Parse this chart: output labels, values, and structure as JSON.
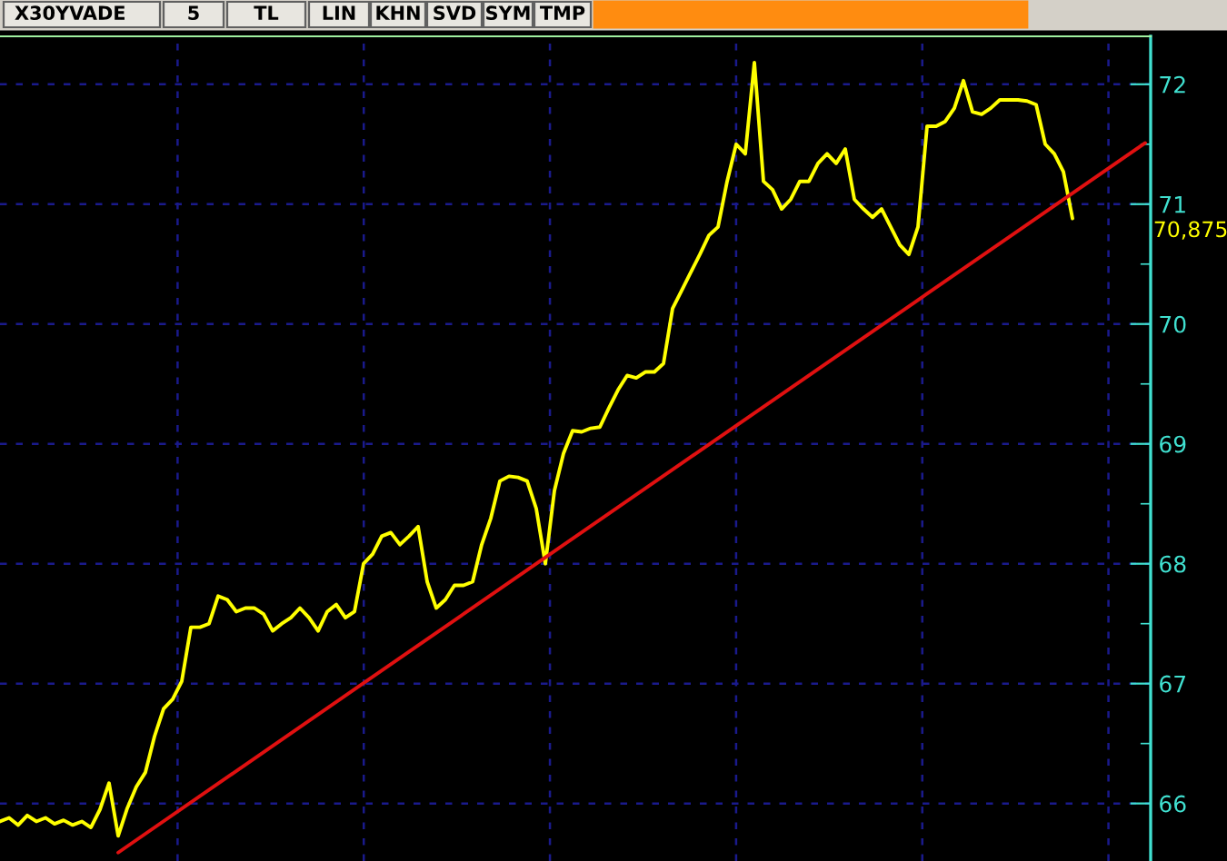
{
  "chart_data": {
    "type": "line",
    "title": "X30YVADE",
    "annotations": [
      "5",
      "TL",
      "LIN",
      "KHN",
      "SVD",
      "SYM",
      "TMP",
      "70,875"
    ],
    "categories": [
      null,
      null,
      null,
      null,
      null,
      null,
      null,
      null,
      null,
      null,
      null,
      null,
      null,
      null,
      null,
      null,
      null,
      null,
      null,
      null,
      null,
      null,
      null,
      null,
      null,
      null,
      null,
      null,
      null,
      null,
      null,
      null,
      null,
      null,
      null,
      null,
      null,
      null,
      null,
      null,
      null,
      null,
      null,
      null,
      null,
      null,
      null,
      null,
      null,
      null,
      null,
      null,
      null,
      null,
      null,
      null,
      null,
      null,
      null,
      null,
      null,
      null,
      null,
      null,
      null,
      null,
      null,
      null,
      null,
      null,
      null,
      null,
      null,
      null,
      null,
      null,
      null,
      null,
      null,
      null,
      null,
      null,
      null,
      null,
      null,
      null,
      null,
      null,
      null,
      null,
      null,
      null,
      null,
      null,
      null,
      null,
      null,
      null,
      null,
      null,
      null,
      null,
      null,
      null,
      null,
      null,
      null,
      null,
      null,
      null,
      null,
      null,
      null,
      null,
      null,
      null,
      null,
      null,
      null,
      null,
      null,
      null,
      null,
      null,
      null,
      null,
      null
    ],
    "series": [
      {
        "color": "#ffff00",
        "values": [
          65.85,
          65.88,
          65.82,
          65.9,
          65.85,
          65.88,
          65.83,
          65.86,
          65.82,
          65.85,
          65.8,
          65.95,
          66.17,
          65.73,
          65.96,
          66.14,
          66.26,
          66.56,
          66.79,
          66.87,
          67.02,
          67.47,
          67.47,
          67.5,
          67.73,
          67.7,
          67.6,
          67.63,
          67.63,
          67.58,
          67.44,
          67.5,
          67.55,
          67.63,
          67.55,
          67.44,
          67.6,
          67.66,
          67.55,
          67.6,
          68.0,
          68.08,
          68.23,
          68.26,
          68.16,
          68.23,
          68.31,
          67.85,
          67.63,
          67.7,
          67.82,
          67.82,
          67.85,
          68.16,
          68.38,
          68.69,
          68.73,
          68.72,
          68.69,
          68.46,
          68.0,
          68.61,
          68.92,
          69.11,
          69.1,
          69.13,
          69.14,
          69.3,
          69.45,
          69.57,
          69.55,
          69.6,
          69.6,
          69.67,
          70.13,
          70.28,
          70.43,
          70.58,
          70.74,
          70.81,
          71.19,
          71.5,
          71.42,
          72.18,
          71.19,
          71.12,
          70.96,
          71.04,
          71.19,
          71.19,
          71.34,
          71.42,
          71.34,
          71.46,
          71.04,
          70.96,
          70.89,
          70.96,
          70.81,
          70.66,
          70.58,
          70.81,
          71.65,
          71.65,
          71.69,
          71.8,
          72.03,
          71.77,
          71.75,
          71.8,
          71.87,
          71.87,
          71.87,
          71.86,
          71.83,
          71.5,
          71.42,
          71.27,
          70.88,
          null,
          null,
          null,
          null,
          null,
          null,
          null,
          null
        ]
      },
      {
        "type": "line",
        "color": "#e01010",
        "values": [
          null,
          null,
          null,
          null,
          null,
          null,
          null,
          null,
          null,
          null,
          null,
          null,
          null,
          65.59,
          null,
          null,
          null,
          null,
          null,
          null,
          null,
          null,
          null,
          null,
          null,
          null,
          null,
          null,
          null,
          null,
          null,
          null,
          null,
          null,
          null,
          null,
          null,
          null,
          null,
          null,
          null,
          null,
          null,
          null,
          null,
          null,
          null,
          null,
          null,
          null,
          null,
          null,
          null,
          null,
          null,
          null,
          null,
          null,
          null,
          null,
          null,
          null,
          null,
          null,
          null,
          null,
          null,
          null,
          null,
          null,
          null,
          null,
          null,
          null,
          null,
          null,
          null,
          null,
          null,
          null,
          null,
          null,
          null,
          null,
          null,
          null,
          null,
          null,
          null,
          null,
          null,
          null,
          null,
          null,
          null,
          null,
          null,
          null,
          null,
          null,
          null,
          null,
          null,
          null,
          null,
          null,
          null,
          null,
          null,
          null,
          null,
          null,
          null,
          null,
          null,
          null,
          null,
          null,
          null,
          null,
          null,
          null,
          null,
          null,
          null,
          null,
          71.51
        ]
      }
    ],
    "ylim": [
      65.52,
      72.4
    ],
    "yticks": [
      66,
      67,
      68,
      69,
      70,
      71,
      72
    ],
    "grid": true,
    "legend": false,
    "tick_labels": "y"
  }
}
